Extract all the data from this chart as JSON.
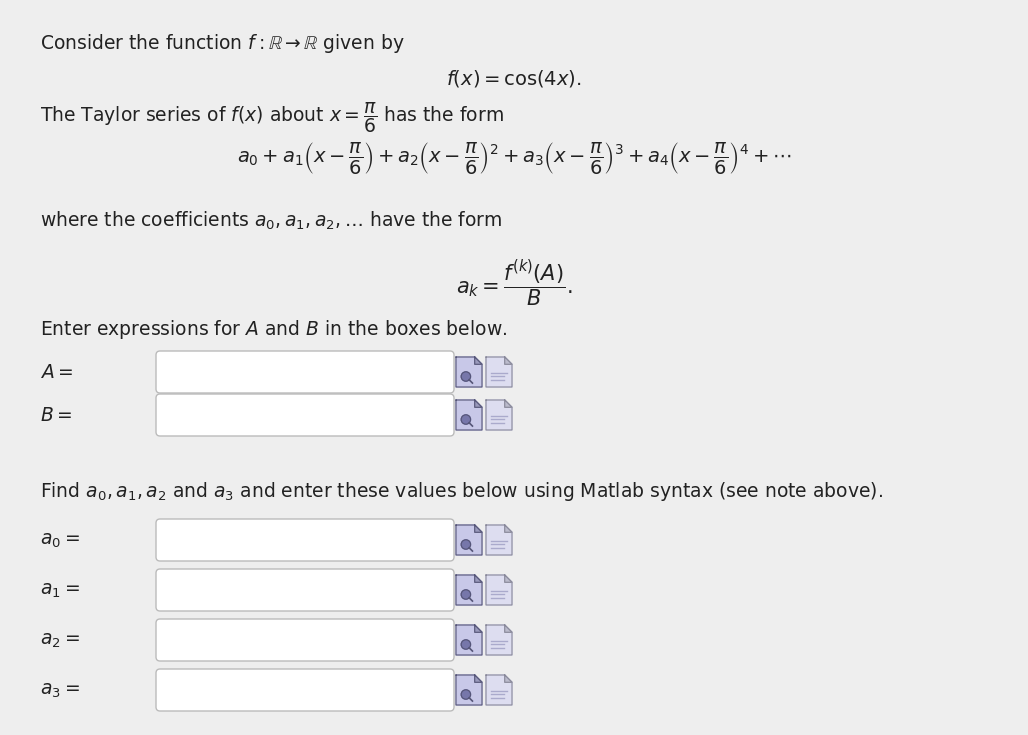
{
  "bg_color": "#eeeeee",
  "text_color": "#222222",
  "line1": "Consider the function $f : \\mathbb{R} \\rightarrow \\mathbb{R}$ given by",
  "line2": "$f(x) = \\cos(4x).$",
  "line3": "The Taylor series of $f(x)$ about $x = \\dfrac{\\pi}{6}$ has the form",
  "line4": "$a_0 + a_1\\left(x - \\dfrac{\\pi}{6}\\right) + a_2\\left(x - \\dfrac{\\pi}{6}\\right)^2 + a_3\\left(x - \\dfrac{\\pi}{6}\\right)^3 + a_4\\left(x - \\dfrac{\\pi}{6}\\right)^4 + \\cdots$",
  "line5": "where the coefficients $a_0, a_1, a_2, \\ldots$ have the form",
  "line6": "$a_k = \\dfrac{f^{(k)}(A)}{B}.$",
  "line7": "Enter expressions for $A$ and $B$ in the boxes below.",
  "label_A": "$A =$",
  "label_B": "$B =$",
  "line8": "Find $a_0, a_1, a_2$ and $a_3$ and enter these values below using Matlab syntax (see note above).",
  "label_a0": "$a_0 =$",
  "label_a1": "$a_1 =$",
  "label_a2": "$a_2 =$",
  "label_a3": "$a_3 =$",
  "input_color": "#ffffff",
  "border_color": "#bbbbbb",
  "icon1_color": "#9999cc",
  "icon1_bg": "#ccccee",
  "icon2_color": "#aaaacc",
  "icon2_bg": "#ddddee"
}
